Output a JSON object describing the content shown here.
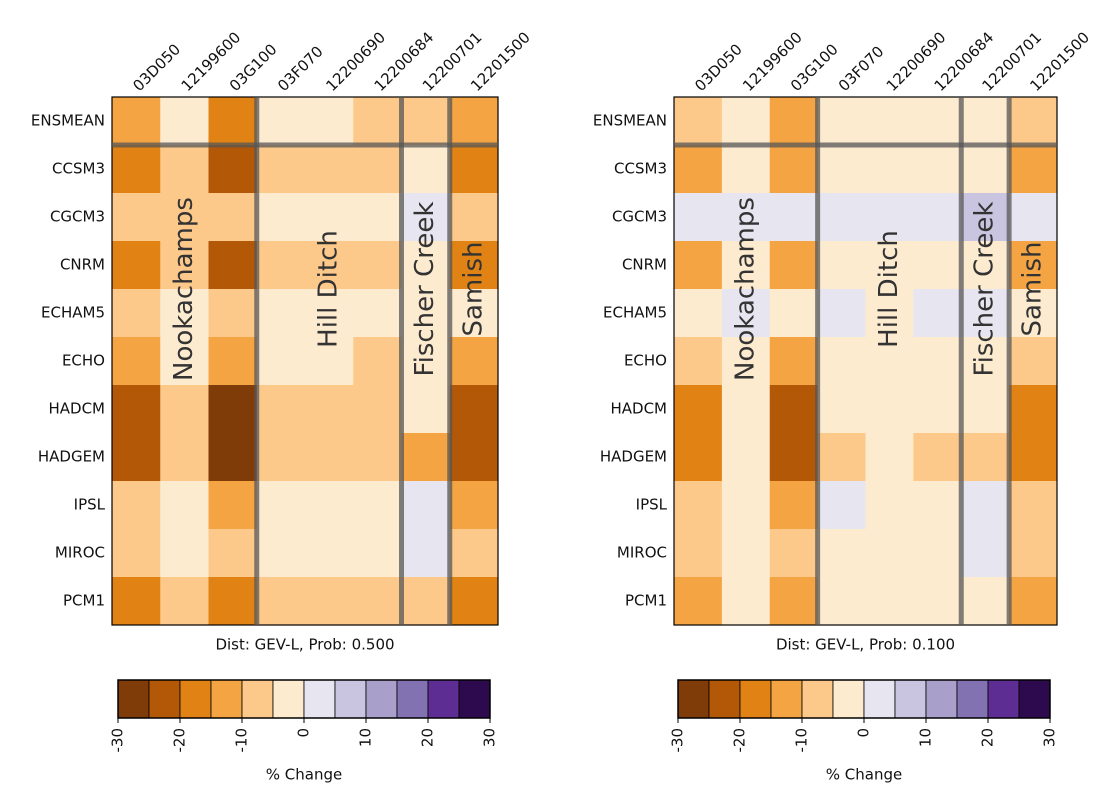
{
  "chart_data": [
    {
      "type": "heatmap",
      "title": "Dist: GEV-L, Prob: 0.500",
      "groups": [
        {
          "name": "Nookachamps",
          "columns": [
            "03D050",
            "12199600",
            "03G100"
          ]
        },
        {
          "name": "Hill Ditch",
          "columns": [
            "03F070",
            "12200690",
            "12200684"
          ]
        },
        {
          "name": "Fischer Creek",
          "columns": [
            "12200701"
          ]
        },
        {
          "name": "Samish",
          "columns": [
            "12201500"
          ]
        }
      ],
      "row_groups": [
        [
          "ENSMEAN"
        ],
        [
          "CCSM3",
          "CGCM3",
          "CNRM",
          "ECHAM5",
          "ECHO",
          "HADCM",
          "HADGEM",
          "IPSL",
          "MIROC",
          "PCM1"
        ]
      ],
      "values": [
        [
          -12.5,
          -2.5,
          -17.5,
          -2.5,
          -2.5,
          -7.5,
          -7.5,
          -12.5
        ],
        [
          -17.5,
          -7.5,
          -22.5,
          -7.5,
          -7.5,
          -7.5,
          -2.5,
          -17.5
        ],
        [
          -7.5,
          -7.5,
          -7.5,
          -2.5,
          -2.5,
          -2.5,
          2.5,
          -7.5
        ],
        [
          -17.5,
          -7.5,
          -22.5,
          -7.5,
          -7.5,
          -7.5,
          -2.5,
          -17.5
        ],
        [
          -7.5,
          -2.5,
          -7.5,
          -2.5,
          -2.5,
          -2.5,
          -2.5,
          -2.5
        ],
        [
          -12.5,
          -2.5,
          -12.5,
          -2.5,
          -2.5,
          -7.5,
          -2.5,
          -12.5
        ],
        [
          -22.5,
          -7.5,
          -27.5,
          -7.5,
          -7.5,
          -7.5,
          -2.5,
          -22.5
        ],
        [
          -22.5,
          -7.5,
          -27.5,
          -7.5,
          -7.5,
          -7.5,
          -12.5,
          -22.5
        ],
        [
          -7.5,
          -2.5,
          -12.5,
          -2.5,
          -2.5,
          -2.5,
          2.5,
          -12.5
        ],
        [
          -7.5,
          -2.5,
          -7.5,
          -2.5,
          -2.5,
          -2.5,
          2.5,
          -7.5
        ],
        [
          -17.5,
          -7.5,
          -17.5,
          -7.5,
          -7.5,
          -7.5,
          -7.5,
          -17.5
        ]
      ],
      "colorbar": {
        "label": "% Change",
        "bounds": [
          -30,
          -25,
          -20,
          -15,
          -10,
          -5,
          0,
          5,
          10,
          15,
          20,
          25,
          30
        ],
        "colors": [
          "#7f3b08",
          "#b35806",
          "#e08214",
          "#f5a443",
          "#fdc98a",
          "#fdebd0",
          "#e6e5f0",
          "#c9c5e1",
          "#a89fcb",
          "#8272b2",
          "#5e2d93",
          "#2d0a4e"
        ],
        "ticks": [
          -30,
          -20,
          -10,
          0,
          10,
          20,
          30
        ]
      }
    },
    {
      "type": "heatmap",
      "title": "Dist: GEV-L, Prob: 0.100",
      "groups": [
        {
          "name": "Nookachamps",
          "columns": [
            "03D050",
            "12199600",
            "03G100"
          ]
        },
        {
          "name": "Hill Ditch",
          "columns": [
            "03F070",
            "12200690",
            "12200684"
          ]
        },
        {
          "name": "Fischer Creek",
          "columns": [
            "12200701"
          ]
        },
        {
          "name": "Samish",
          "columns": [
            "12201500"
          ]
        }
      ],
      "row_groups": [
        [
          "ENSMEAN"
        ],
        [
          "CCSM3",
          "CGCM3",
          "CNRM",
          "ECHAM5",
          "ECHO",
          "HADCM",
          "HADGEM",
          "IPSL",
          "MIROC",
          "PCM1"
        ]
      ],
      "values": [
        [
          -7.5,
          -2.5,
          -12.5,
          -2.5,
          -2.5,
          -2.5,
          -2.5,
          -7.5
        ],
        [
          -12.5,
          -2.5,
          -12.5,
          -2.5,
          -2.5,
          -2.5,
          -2.5,
          -12.5
        ],
        [
          2.5,
          2.5,
          2.5,
          2.5,
          2.5,
          2.5,
          7.5,
          2.5
        ],
        [
          -12.5,
          -2.5,
          -12.5,
          -2.5,
          -2.5,
          -2.5,
          -2.5,
          -12.5
        ],
        [
          -2.5,
          2.5,
          -2.5,
          2.5,
          -2.5,
          2.5,
          2.5,
          -2.5
        ],
        [
          -7.5,
          -2.5,
          -12.5,
          -2.5,
          -2.5,
          -2.5,
          -2.5,
          -7.5
        ],
        [
          -17.5,
          -2.5,
          -22.5,
          -2.5,
          -2.5,
          -2.5,
          -2.5,
          -17.5
        ],
        [
          -17.5,
          -2.5,
          -22.5,
          -7.5,
          -2.5,
          -7.5,
          -7.5,
          -17.5
        ],
        [
          -7.5,
          -2.5,
          -12.5,
          2.5,
          -2.5,
          -2.5,
          2.5,
          -7.5
        ],
        [
          -7.5,
          -2.5,
          -7.5,
          -2.5,
          -2.5,
          -2.5,
          2.5,
          -7.5
        ],
        [
          -12.5,
          -2.5,
          -12.5,
          -2.5,
          -2.5,
          -2.5,
          -2.5,
          -12.5
        ]
      ],
      "colorbar": {
        "label": "% Change",
        "bounds": [
          -30,
          -25,
          -20,
          -15,
          -10,
          -5,
          0,
          5,
          10,
          15,
          20,
          25,
          30
        ],
        "colors": [
          "#7f3b08",
          "#b35806",
          "#e08214",
          "#f5a443",
          "#fdc98a",
          "#fdebd0",
          "#e6e5f0",
          "#c9c5e1",
          "#a89fcb",
          "#8272b2",
          "#5e2d93",
          "#2d0a4e"
        ],
        "ticks": [
          -30,
          -20,
          -10,
          0,
          10,
          20,
          30
        ]
      }
    }
  ]
}
